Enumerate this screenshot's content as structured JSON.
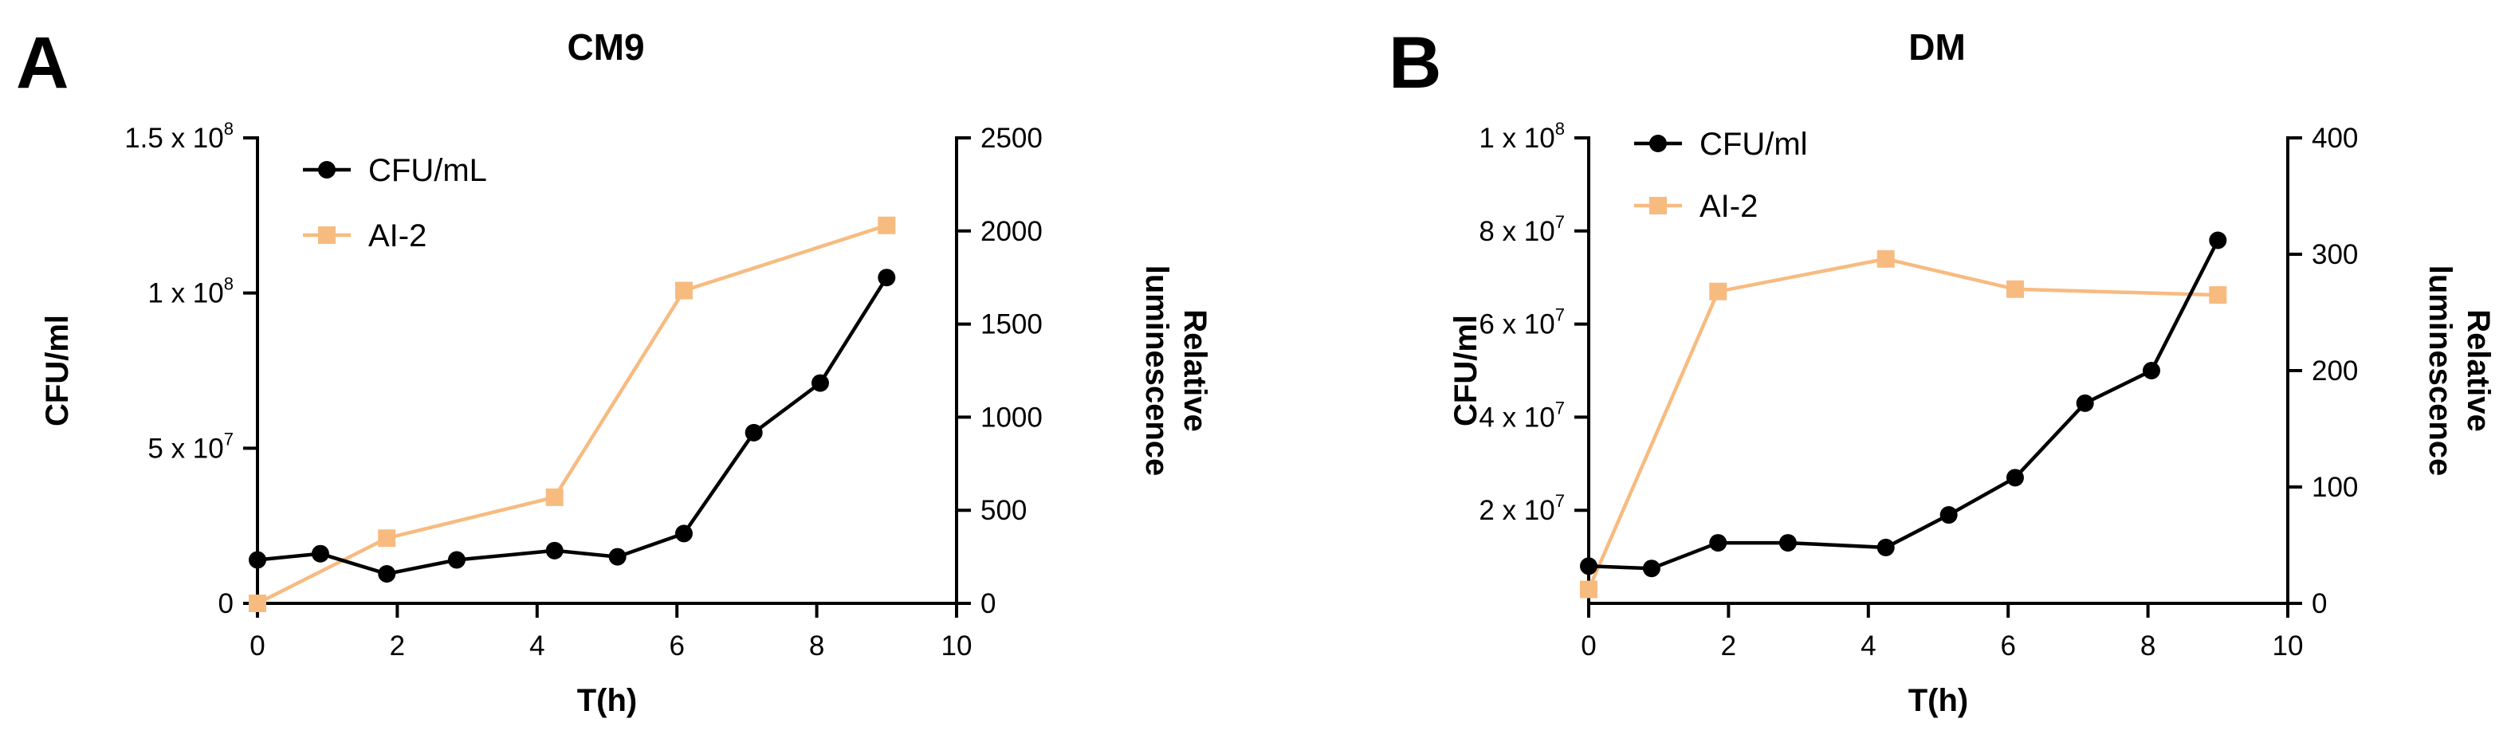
{
  "chart_data": [
    {
      "type": "line",
      "panel": "A",
      "title": "CM9",
      "xlabel": "T(h)",
      "ylabel": "CFU/ml",
      "y2label": "Relative luminescence",
      "y2label_lines": [
        "Relative",
        "luminescence"
      ],
      "xlim": [
        0,
        10
      ],
      "ylim": [
        0,
        150000000
      ],
      "y2lim": [
        0,
        2500
      ],
      "x_ticks": [
        0,
        2,
        4,
        6,
        8,
        10
      ],
      "y_ticks": [
        {
          "value": 0,
          "base": "0",
          "exp": ""
        },
        {
          "value": 50000000,
          "base": "5 x 10",
          "exp": "7"
        },
        {
          "value": 100000000,
          "base": "1 x 10",
          "exp": "8"
        },
        {
          "value": 150000000,
          "base": "1.5 x 10",
          "exp": "8"
        }
      ],
      "y2_ticks": [
        0,
        500,
        1000,
        1500,
        2000,
        2500
      ],
      "grid": false,
      "legend_position": "top-left",
      "series": [
        {
          "name": "CFU/mL",
          "axis": "left",
          "color": "#000000",
          "marker": "circle",
          "x": [
            0,
            0.9,
            1.85,
            2.85,
            4.25,
            5.15,
            6.1,
            7.1,
            8.05,
            9.0
          ],
          "y": [
            14000000,
            16000000,
            9500000,
            14000000,
            17000000,
            15000000,
            22500000,
            55000000,
            71000000,
            105000000
          ]
        },
        {
          "name": "AI-2",
          "axis": "right",
          "color": "#F7BB80",
          "marker": "square",
          "x": [
            0,
            1.85,
            4.25,
            6.1,
            9.0
          ],
          "y": [
            0,
            350,
            570,
            1680,
            2030
          ]
        }
      ]
    },
    {
      "type": "line",
      "panel": "B",
      "title": "DM",
      "xlabel": "T(h)",
      "ylabel": "CFU/ml",
      "y2label": "Relative luminescence",
      "y2label_lines": [
        "Relative",
        "luminescence"
      ],
      "xlim": [
        0,
        10
      ],
      "ylim": [
        0,
        100000000
      ],
      "y2lim": [
        0,
        400
      ],
      "x_ticks": [
        0,
        2,
        4,
        6,
        8,
        10
      ],
      "y_ticks": [
        {
          "value": 20000000,
          "base": "2 x 10",
          "exp": "7"
        },
        {
          "value": 40000000,
          "base": "4 x 10",
          "exp": "7"
        },
        {
          "value": 60000000,
          "base": "6 x 10",
          "exp": "7"
        },
        {
          "value": 80000000,
          "base": "8 x 10",
          "exp": "7"
        },
        {
          "value": 100000000,
          "base": "1 x 10",
          "exp": "8"
        }
      ],
      "y2_ticks": [
        0,
        100,
        200,
        300,
        400
      ],
      "grid": false,
      "legend_position": "top-left",
      "series": [
        {
          "name": "CFU/ml",
          "axis": "left",
          "color": "#000000",
          "marker": "circle",
          "x": [
            0,
            0.9,
            1.85,
            2.85,
            4.25,
            5.15,
            6.1,
            7.1,
            8.05,
            9.0
          ],
          "y": [
            8000000,
            7500000,
            13000000,
            13000000,
            12000000,
            19000000,
            27000000,
            43000000,
            50000000,
            78000000
          ]
        },
        {
          "name": "AI-2",
          "axis": "right",
          "color": "#F7BB80",
          "marker": "square",
          "x": [
            0,
            1.85,
            4.25,
            6.1,
            9.0
          ],
          "y": [
            12,
            268,
            296,
            270,
            265
          ]
        }
      ]
    }
  ]
}
